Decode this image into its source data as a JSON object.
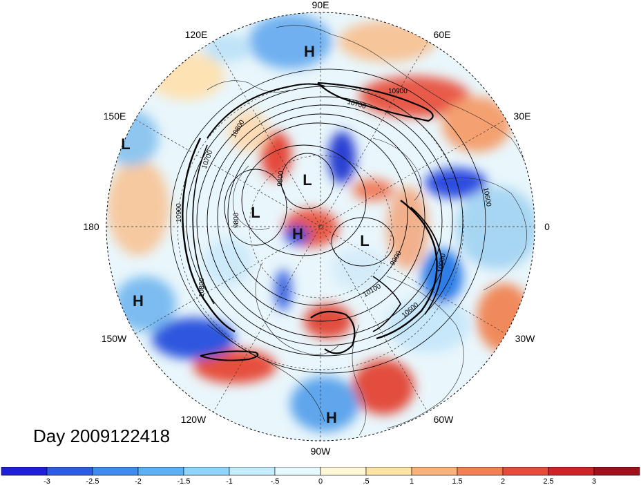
{
  "title": "Day 2009122418",
  "lon_labels": {
    "deg90E": "90E",
    "deg60E": "60E",
    "deg30E": "30E",
    "deg0": "0",
    "deg30W": "30W",
    "deg60W": "60W",
    "deg90W": "90W",
    "deg120W": "120W",
    "deg150W": "150W",
    "deg180": "180",
    "deg150E": "150E",
    "deg120E": "120E"
  },
  "pressure_labels": [
    {
      "text": "H"
    },
    {
      "text": "L"
    },
    {
      "text": "L"
    },
    {
      "text": "L"
    },
    {
      "text": "H"
    },
    {
      "text": "L"
    },
    {
      "text": "H"
    },
    {
      "text": "H"
    }
  ],
  "contour_labels": [
    {
      "text": "10900"
    },
    {
      "text": "10700"
    },
    {
      "text": "10600"
    },
    {
      "text": "10800"
    },
    {
      "text": "9800"
    },
    {
      "text": "10700"
    },
    {
      "text": "10900"
    },
    {
      "text": "9800"
    },
    {
      "text": "9900"
    },
    {
      "text": "10100"
    },
    {
      "text": "10800"
    },
    {
      "text": "10900"
    },
    {
      "text": "10600"
    }
  ],
  "colorbar": {
    "colors": [
      "#1f1fd8",
      "#2d5de6",
      "#3e8cf0",
      "#5cb0f5",
      "#8fd4fa",
      "#c4ecfc",
      "#e8f8ff",
      "#fff7d6",
      "#fde3a4",
      "#f9b27a",
      "#f28052",
      "#e84a3b",
      "#cc2228",
      "#a0101c"
    ],
    "ticks": [
      "-3",
      "-2.5",
      "-2",
      "-1.5",
      "-1",
      "-.5",
      "0",
      ".5",
      "1",
      "1.5",
      "2",
      "2.5",
      "3"
    ]
  }
}
